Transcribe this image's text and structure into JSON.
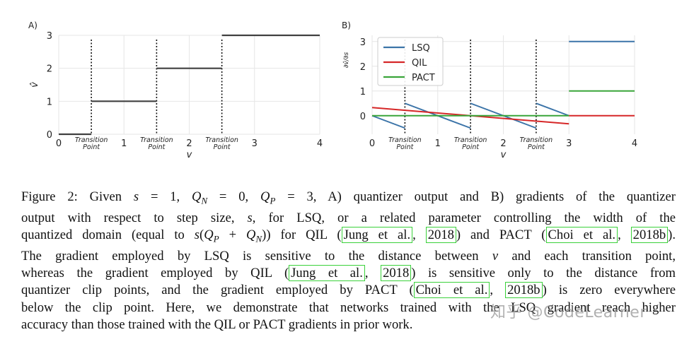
{
  "chart_data": [
    {
      "panel_label": "A)",
      "type": "line",
      "title": "",
      "xlabel": "v",
      "ylabel": "v̂",
      "xlim": [
        0,
        4
      ],
      "ylim": [
        0,
        3
      ],
      "xticks": [
        "0",
        "1",
        "2",
        "3",
        "4"
      ],
      "yticks": [
        "0",
        "1",
        "2",
        "3"
      ],
      "transition_label": [
        "Transition",
        "Point"
      ],
      "transition_points": [
        0.5,
        1.5,
        2.5
      ],
      "series": [
        {
          "name": "quantizer output",
          "color": "#404040",
          "steps": [
            {
              "x0": 0,
              "x1": 0.5,
              "y": 0
            },
            {
              "x0": 0.5,
              "x1": 1.5,
              "y": 1
            },
            {
              "x0": 1.5,
              "x1": 2.5,
              "y": 2
            },
            {
              "x0": 2.5,
              "x1": 4,
              "y": 3
            }
          ]
        }
      ],
      "grid": true
    },
    {
      "panel_label": "B)",
      "type": "line",
      "title": "",
      "xlabel": "v",
      "ylabel": "∂v̂/∂s",
      "xlim": [
        0,
        4
      ],
      "ylim": [
        -0.75,
        3.25
      ],
      "xticks": [
        "0",
        "1",
        "2",
        "3",
        "4"
      ],
      "yticks": [
        "0",
        "1",
        "2",
        "3"
      ],
      "transition_label": [
        "Transition",
        "Point"
      ],
      "transition_points": [
        0.5,
        1.5,
        2.5
      ],
      "legend": {
        "position": "upper-left",
        "entries": [
          "LSQ",
          "QIL",
          "PACT"
        ]
      },
      "series": [
        {
          "name": "LSQ",
          "color": "#3b74a8",
          "segments": [
            [
              [
                0,
                0
              ],
              [
                0.5,
                -0.5
              ]
            ],
            [
              [
                0.5,
                0.5
              ],
              [
                1.5,
                -0.5
              ]
            ],
            [
              [
                1.5,
                0.5
              ],
              [
                2.5,
                -0.5
              ]
            ],
            [
              [
                2.5,
                0.5
              ],
              [
                3,
                0
              ]
            ],
            [
              [
                3,
                3
              ],
              [
                4,
                3
              ]
            ]
          ]
        },
        {
          "name": "QIL",
          "color": "#d62728",
          "segments": [
            [
              [
                0,
                0.33
              ],
              [
                3,
                -0.33
              ]
            ],
            [
              [
                3,
                0
              ],
              [
                4,
                0
              ]
            ]
          ]
        },
        {
          "name": "PACT",
          "color": "#3aa53a",
          "segments": [
            [
              [
                0,
                0
              ],
              [
                3,
                0
              ]
            ],
            [
              [
                3,
                1
              ],
              [
                4,
                1
              ]
            ]
          ]
        }
      ],
      "grid": true
    }
  ],
  "caption": {
    "lines": [
      [
        {
          "t": "Figure 2: Given "
        },
        {
          "t": "s",
          "i": true
        },
        {
          "t": " = 1, "
        },
        {
          "t": "Q",
          "i": true
        },
        {
          "t": "N",
          "sub": true
        },
        {
          "t": " = 0, "
        },
        {
          "t": "Q",
          "i": true
        },
        {
          "t": "P",
          "sub": true
        },
        {
          "t": " = 3, A) quantizer output and B) gradients of the quantizer"
        }
      ],
      [
        {
          "t": "output with respect to step size, "
        },
        {
          "t": "s",
          "i": true
        },
        {
          "t": ", for LSQ, or a related parameter controlling the width of the"
        }
      ],
      [
        {
          "t": "quantized domain (equal to "
        },
        {
          "t": "s",
          "i": true
        },
        {
          "t": "("
        },
        {
          "t": "Q",
          "i": true
        },
        {
          "t": "P",
          "sub": true
        },
        {
          "t": " + "
        },
        {
          "t": "Q",
          "i": true
        },
        {
          "t": "N",
          "sub": true
        },
        {
          "t": ")) for QIL ("
        },
        {
          "t": "Jung et al.",
          "cite": true
        },
        {
          "t": ", "
        },
        {
          "t": "2018",
          "cite": true
        },
        {
          "t": ") and PACT ("
        },
        {
          "t": "Choi et al.",
          "cite": true
        },
        {
          "t": ", "
        },
        {
          "t": "2018b",
          "cite": true
        },
        {
          "t": ")."
        }
      ],
      [
        {
          "t": "The gradient employed by LSQ is sensitive to the distance between "
        },
        {
          "t": "v",
          "i": true
        },
        {
          "t": " and each transition point,"
        }
      ],
      [
        {
          "t": "whereas the gradient employed by QIL ("
        },
        {
          "t": "Jung et al.",
          "cite": true
        },
        {
          "t": ", "
        },
        {
          "t": "2018",
          "cite": true
        },
        {
          "t": ") is sensitive only to the distance from"
        }
      ],
      [
        {
          "t": "quantizer clip points, and the gradient employed by PACT ("
        },
        {
          "t": "Choi et al.",
          "cite": true
        },
        {
          "t": ", "
        },
        {
          "t": "2018b",
          "cite": true
        },
        {
          "t": ") is zero everywhere"
        }
      ],
      [
        {
          "t": "below the clip point. Here, we demonstrate that networks trained with the LSQ gradient reach higher"
        }
      ],
      [
        {
          "t": "accuracy than those trained with the QIL or PACT gradients in prior work."
        }
      ]
    ]
  },
  "watermark": "知乎 @CodeLearner"
}
